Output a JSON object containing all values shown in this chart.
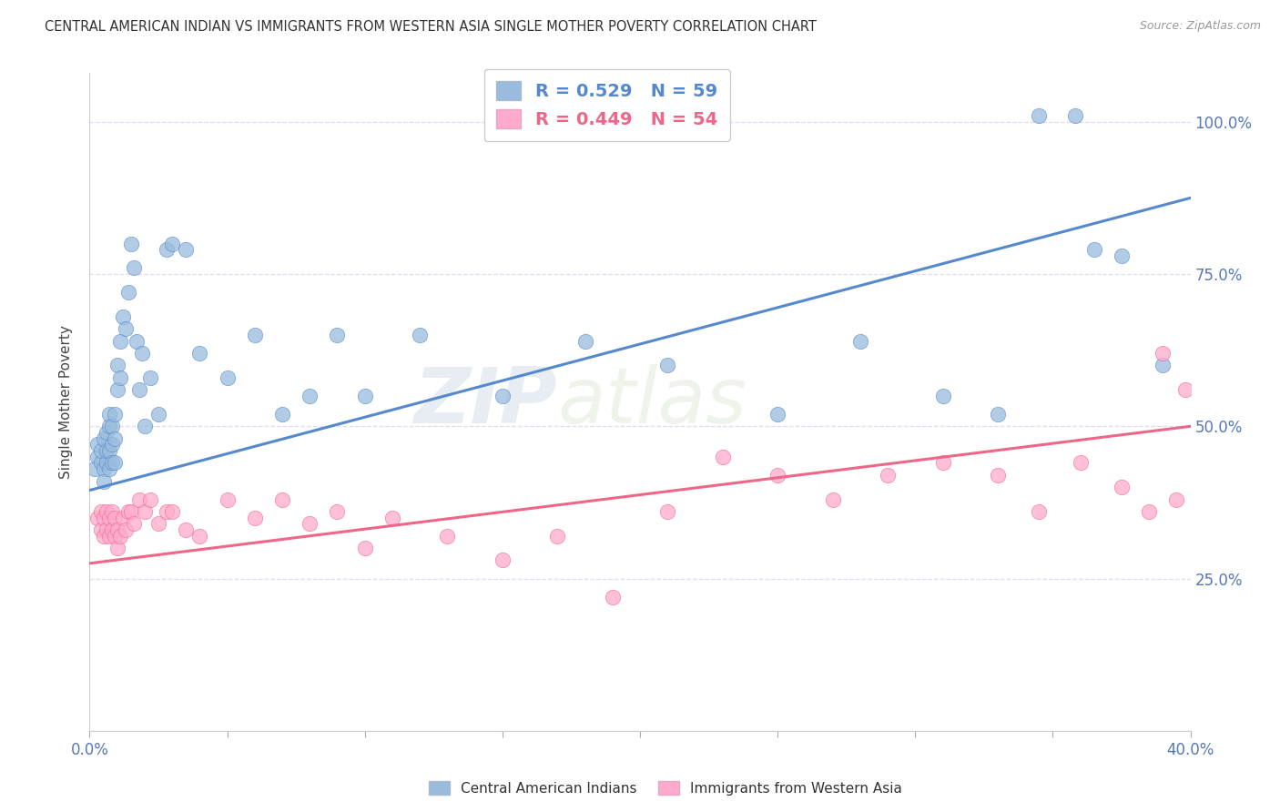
{
  "title": "CENTRAL AMERICAN INDIAN VS IMMIGRANTS FROM WESTERN ASIA SINGLE MOTHER POVERTY CORRELATION CHART",
  "source": "Source: ZipAtlas.com",
  "ylabel": "Single Mother Poverty",
  "yright_ticks": [
    "25.0%",
    "50.0%",
    "75.0%",
    "100.0%"
  ],
  "watermark_zip": "ZIP",
  "watermark_atlas": "atlas",
  "legend_blue_label": "R = 0.529   N = 59",
  "legend_pink_label": "R = 0.449   N = 54",
  "legend_blue_r": "0.529",
  "legend_blue_n": "59",
  "legend_pink_r": "0.449",
  "legend_pink_n": "54",
  "blue_color": "#99BBDD",
  "pink_color": "#FFAACC",
  "blue_line_color": "#5588CC",
  "pink_line_color": "#EE6688",
  "background_color": "#FFFFFF",
  "grid_color": "#DDDDEE",
  "xlim": [
    0.0,
    0.4
  ],
  "ylim": [
    0.0,
    1.08
  ],
  "blue_scatter_x": [
    0.002,
    0.003,
    0.003,
    0.004,
    0.004,
    0.005,
    0.005,
    0.005,
    0.006,
    0.006,
    0.006,
    0.007,
    0.007,
    0.007,
    0.007,
    0.008,
    0.008,
    0.008,
    0.009,
    0.009,
    0.009,
    0.01,
    0.01,
    0.011,
    0.011,
    0.012,
    0.013,
    0.014,
    0.015,
    0.016,
    0.017,
    0.018,
    0.019,
    0.02,
    0.022,
    0.025,
    0.028,
    0.03,
    0.035,
    0.04,
    0.05,
    0.06,
    0.07,
    0.08,
    0.09,
    0.1,
    0.12,
    0.15,
    0.18,
    0.21,
    0.25,
    0.28,
    0.31,
    0.33,
    0.345,
    0.358,
    0.365,
    0.375,
    0.39
  ],
  "blue_scatter_y": [
    0.43,
    0.45,
    0.47,
    0.44,
    0.46,
    0.43,
    0.41,
    0.48,
    0.44,
    0.46,
    0.49,
    0.43,
    0.46,
    0.5,
    0.52,
    0.44,
    0.47,
    0.5,
    0.44,
    0.48,
    0.52,
    0.56,
    0.6,
    0.58,
    0.64,
    0.68,
    0.66,
    0.72,
    0.8,
    0.76,
    0.64,
    0.56,
    0.62,
    0.5,
    0.58,
    0.52,
    0.79,
    0.8,
    0.79,
    0.62,
    0.58,
    0.65,
    0.52,
    0.55,
    0.65,
    0.55,
    0.65,
    0.55,
    0.64,
    0.6,
    0.52,
    0.64,
    0.55,
    0.52,
    1.01,
    1.01,
    0.79,
    0.78,
    0.6
  ],
  "pink_scatter_x": [
    0.003,
    0.004,
    0.004,
    0.005,
    0.005,
    0.006,
    0.006,
    0.007,
    0.007,
    0.008,
    0.008,
    0.009,
    0.009,
    0.01,
    0.01,
    0.011,
    0.012,
    0.013,
    0.014,
    0.015,
    0.016,
    0.018,
    0.02,
    0.022,
    0.025,
    0.028,
    0.03,
    0.035,
    0.04,
    0.05,
    0.06,
    0.07,
    0.08,
    0.09,
    0.1,
    0.11,
    0.13,
    0.15,
    0.17,
    0.19,
    0.21,
    0.23,
    0.25,
    0.27,
    0.29,
    0.31,
    0.33,
    0.345,
    0.36,
    0.375,
    0.385,
    0.39,
    0.395,
    0.398
  ],
  "pink_scatter_y": [
    0.35,
    0.33,
    0.36,
    0.32,
    0.35,
    0.33,
    0.36,
    0.32,
    0.35,
    0.33,
    0.36,
    0.32,
    0.35,
    0.3,
    0.33,
    0.32,
    0.35,
    0.33,
    0.36,
    0.36,
    0.34,
    0.38,
    0.36,
    0.38,
    0.34,
    0.36,
    0.36,
    0.33,
    0.32,
    0.38,
    0.35,
    0.38,
    0.34,
    0.36,
    0.3,
    0.35,
    0.32,
    0.28,
    0.32,
    0.22,
    0.36,
    0.45,
    0.42,
    0.38,
    0.42,
    0.44,
    0.42,
    0.36,
    0.44,
    0.4,
    0.36,
    0.62,
    0.38,
    0.56
  ]
}
